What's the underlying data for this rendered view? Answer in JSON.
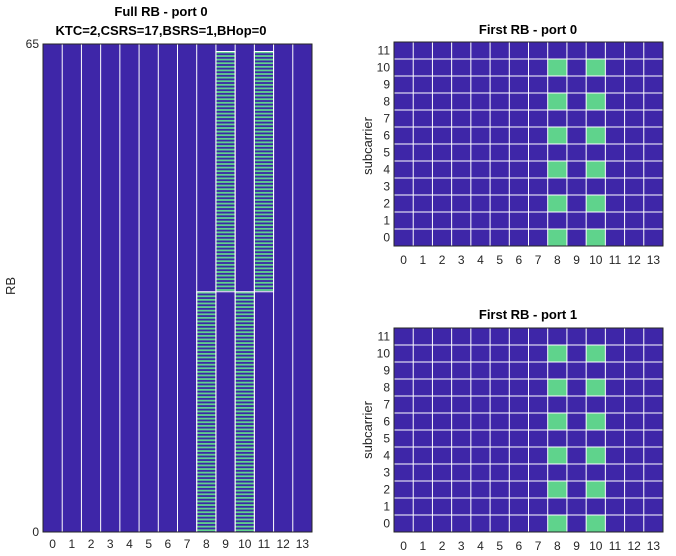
{
  "colors": {
    "empty": "#3e26a8",
    "occupied": "#5fd38c",
    "grid": "#ffffff",
    "axis": "#262626"
  },
  "chart_data": [
    {
      "type": "heatmap",
      "title": "Full RB - port 0",
      "subtitle": "KTC=2,CSRS=17,BSRS=1,BHop=0",
      "xlabel": "",
      "ylabel": "RB",
      "x_ticks": [
        "0",
        "1",
        "2",
        "3",
        "4",
        "5",
        "6",
        "7",
        "8",
        "9",
        "10",
        "11",
        "12",
        "13"
      ],
      "y_ticks": [
        "0",
        "65"
      ],
      "y_range": [
        0,
        65
      ],
      "occupied_columns": [
        {
          "symbol": 8,
          "rb_range": [
            0,
            32
          ]
        },
        {
          "symbol": 10,
          "rb_range": [
            0,
            32
          ]
        },
        {
          "symbol": 9,
          "rb_range": [
            32,
            64
          ]
        },
        {
          "symbol": 11,
          "rb_range": [
            32,
            64
          ]
        }
      ],
      "occupied_subcarrier_parity": "even"
    },
    {
      "type": "heatmap",
      "title": "First RB - port 0",
      "xlabel": "",
      "ylabel": "subcarrier",
      "x_ticks": [
        "0",
        "1",
        "2",
        "3",
        "4",
        "5",
        "6",
        "7",
        "8",
        "9",
        "10",
        "11",
        "12",
        "13"
      ],
      "y_ticks": [
        "0",
        "1",
        "2",
        "3",
        "4",
        "5",
        "6",
        "7",
        "8",
        "9",
        "10",
        "11"
      ],
      "occupied_symbols": [
        8,
        10
      ],
      "occupied_subcarriers": [
        0,
        2,
        4,
        6,
        8,
        10
      ]
    },
    {
      "type": "heatmap",
      "title": "First RB - port 1",
      "xlabel": "",
      "ylabel": "subcarrier",
      "x_ticks": [
        "0",
        "1",
        "2",
        "3",
        "4",
        "5",
        "6",
        "7",
        "8",
        "9",
        "10",
        "11",
        "12",
        "13"
      ],
      "y_ticks": [
        "0",
        "1",
        "2",
        "3",
        "4",
        "5",
        "6",
        "7",
        "8",
        "9",
        "10",
        "11"
      ],
      "occupied_symbols": [
        8,
        10
      ],
      "occupied_subcarriers": [
        0,
        2,
        4,
        6,
        8,
        10
      ]
    }
  ]
}
